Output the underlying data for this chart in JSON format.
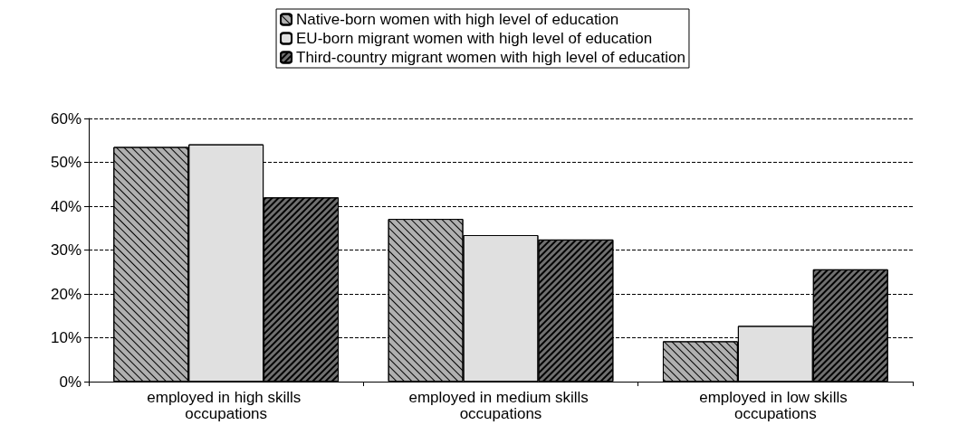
{
  "chart_data": {
    "type": "bar",
    "categories": [
      "employed in high skills occupations",
      "employed in medium skills occupations",
      "employed in low skills occupations"
    ],
    "series": [
      {
        "name": "Native-born women with high level of education",
        "color": "#b0b0b0",
        "values": [
          53.5,
          37.1,
          9.2
        ]
      },
      {
        "name": "EU-born migrant women with high level of education",
        "color": "#e0e0e0",
        "values": [
          54.1,
          33.4,
          12.7
        ]
      },
      {
        "name": "Third-country migrant women with high level of education",
        "color": "#707070",
        "values": [
          42,
          32.4,
          25.6
        ]
      }
    ],
    "ylim": [
      0,
      60
    ],
    "yticks": [
      {
        "value": 0,
        "label": "0%"
      },
      {
        "value": 10,
        "label": "10%"
      },
      {
        "value": 20,
        "label": "20%"
      },
      {
        "value": 30,
        "label": "30%"
      },
      {
        "value": 40,
        "label": "40%"
      },
      {
        "value": 50,
        "label": "50%"
      },
      {
        "value": 60,
        "label": "60%"
      }
    ],
    "grid": "y",
    "legend": "top"
  }
}
